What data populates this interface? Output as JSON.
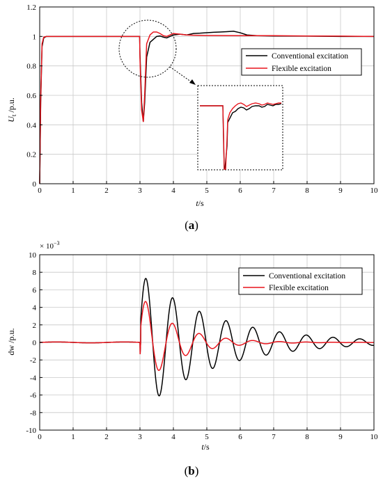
{
  "colors": {
    "conventional": "#000000",
    "flexible": "#e8141c",
    "grid": "#c8c8c8"
  },
  "chart_data": [
    {
      "type": "line",
      "caption_letter": "a",
      "xlabel_main": "t",
      "xlabel_unit": "/s",
      "ylabel_main": "U",
      "ylabel_sub": "t",
      "ylabel_unit": " /p.u.",
      "xlim": [
        0,
        10
      ],
      "ylim": [
        0,
        1.2
      ],
      "xticks": [
        "0",
        "1",
        "2",
        "3",
        "4",
        "5",
        "6",
        "7",
        "8",
        "9",
        "10"
      ],
      "yticks": [
        "0",
        "0.2",
        "0.4",
        "0.6",
        "0.8",
        "1",
        "1.2"
      ],
      "grid": true,
      "legend_position": "right-middle",
      "inset": {
        "zoom_of": "fault transient near t = 3 s",
        "shape": "dotted circle with arrow to dotted box"
      },
      "series": [
        {
          "name": "Conventional excitation",
          "color_key": "conventional",
          "x": [
            0,
            0.03,
            0.07,
            0.12,
            0.2,
            2.99,
            3.0,
            3.05,
            3.1,
            3.14,
            3.2,
            3.3,
            3.4,
            3.5,
            3.6,
            3.7,
            3.8,
            3.9,
            4.0,
            4.2,
            4.4,
            4.6,
            4.8,
            5.0,
            5.2,
            5.4,
            5.6,
            5.8,
            6.0,
            6.2,
            6.5,
            7.0,
            8.0,
            9.0,
            10.0
          ],
          "y": [
            0,
            0.55,
            0.93,
            0.99,
            1.0,
            1.0,
            0.88,
            0.55,
            0.42,
            0.55,
            0.86,
            0.96,
            0.98,
            1.0,
            1.003,
            0.995,
            0.99,
            1.0,
            1.01,
            1.015,
            1.01,
            1.02,
            1.022,
            1.025,
            1.028,
            1.03,
            1.032,
            1.035,
            1.025,
            1.01,
            1.005,
            1.003,
            1.002,
            1.0,
            1.0
          ]
        },
        {
          "name": "Flexible excitation",
          "color_key": "flexible",
          "x": [
            0,
            0.03,
            0.07,
            0.12,
            0.2,
            2.99,
            3.0,
            3.05,
            3.1,
            3.14,
            3.2,
            3.3,
            3.4,
            3.5,
            3.6,
            3.7,
            3.8,
            3.9,
            4.0,
            4.2,
            4.4,
            4.6,
            5.0,
            6.0,
            7.0,
            8.0,
            9.0,
            10.0
          ],
          "y": [
            0,
            0.58,
            0.95,
            0.995,
            1.0,
            1.0,
            0.85,
            0.5,
            0.42,
            0.6,
            0.95,
            1.01,
            1.03,
            1.03,
            1.02,
            1.005,
            1.0,
            1.01,
            1.02,
            1.015,
            1.01,
            1.008,
            1.006,
            1.005,
            1.005,
            1.003,
            1.002,
            1.0
          ]
        }
      ]
    },
    {
      "type": "line",
      "caption_letter": "b",
      "xlabel_main": "t",
      "xlabel_unit": "/s",
      "ylabel": "dw /p.u.",
      "y_multiplier_base": "× 10",
      "y_multiplier_exp": "−3",
      "xlim": [
        0,
        10
      ],
      "ylim": [
        -10,
        10
      ],
      "xticks": [
        "0",
        "1",
        "2",
        "3",
        "4",
        "5",
        "6",
        "7",
        "8",
        "9",
        "10"
      ],
      "yticks": [
        "-10",
        "-8",
        "-6",
        "-4",
        "-2",
        "0",
        "2",
        "4",
        "6",
        "8",
        "10"
      ],
      "grid": true,
      "legend_position": "top-right",
      "series": [
        {
          "name": "Conventional excitation",
          "color_key": "conventional",
          "oscillation": {
            "start": 3.0,
            "first_peak": 8.2,
            "first_trough": -7.6,
            "period": 0.8,
            "decay_per_s": 0.45
          }
        },
        {
          "name": "Flexible excitation",
          "color_key": "flexible",
          "oscillation": {
            "start": 3.0,
            "first_peak": 5.5,
            "first_trough": -5.5,
            "period": 0.8,
            "decay_per_s": 0.95
          }
        }
      ]
    }
  ]
}
